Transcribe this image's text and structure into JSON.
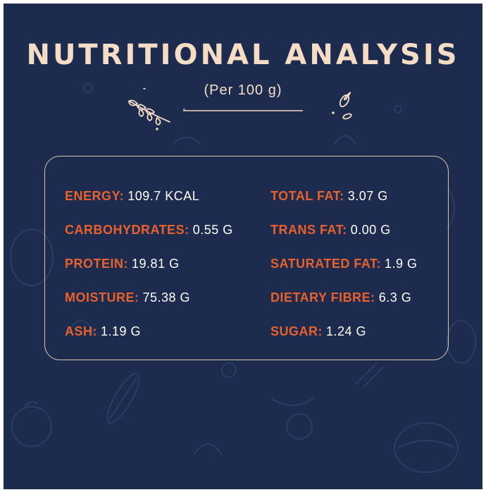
{
  "header": {
    "title": "NUTRITIONAL ANALYSIS",
    "subtitle": "(Per 100 g)"
  },
  "nutrients": {
    "left": [
      {
        "label": "ENERGY:",
        "value": "109.7 KCAL"
      },
      {
        "label": "CARBOHYDRATES:",
        "value": "0.55 G"
      },
      {
        "label": "PROTEIN:",
        "value": "19.81 G"
      },
      {
        "label": "MOISTURE:",
        "value": "75.38 G"
      },
      {
        "label": "ASH:",
        "value": "1.19 G"
      }
    ],
    "right": [
      {
        "label": "TOTAL FAT:",
        "value": "3.07 G"
      },
      {
        "label": "TRANS FAT:",
        "value": "0.00 G"
      },
      {
        "label": "SATURATED FAT:",
        "value": "1.9 G"
      },
      {
        "label": "DIETARY FIBRE:",
        "value": "6.3 G"
      },
      {
        "label": "SUGAR:",
        "value": "1.24 G"
      }
    ]
  },
  "colors": {
    "background": "#1c2b4e",
    "title": "#f5dcc4",
    "label": "#e8612c",
    "value": "#ffffff",
    "border": "#d9c7b4"
  },
  "icons": [
    "wheat-sprig-icon",
    "leaf-icon",
    "food-doodle-pattern"
  ]
}
